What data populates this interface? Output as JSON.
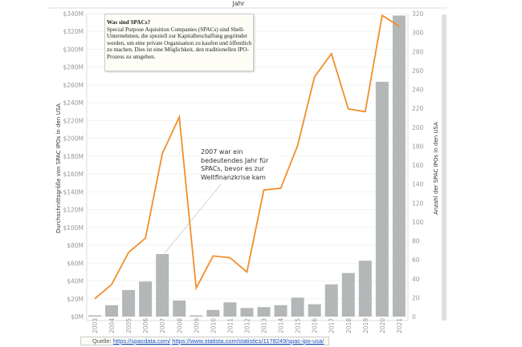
{
  "chart_data": {
    "type": "bar+line",
    "header": "Jahr",
    "categories": [
      "2003",
      "2004",
      "2005",
      "2006",
      "2007",
      "2008",
      "2009",
      "2010",
      "2011",
      "2012",
      "2013",
      "2014",
      "2015",
      "2016",
      "2017",
      "2018",
      "2019",
      "2020",
      "2021"
    ],
    "series": [
      {
        "name": "Anzahl der SPAC IPOs in den USA",
        "type": "bar",
        "axis": "right",
        "color": "#b4b7b7",
        "values": [
          1,
          12,
          28,
          37,
          66,
          17,
          1,
          7,
          15,
          9,
          10,
          12,
          20,
          13,
          34,
          46,
          59,
          248,
          318
        ]
      },
      {
        "name": "Durchschnittsgröße von SPAC IPOs in den USA",
        "type": "line",
        "axis": "left",
        "color": "#f28e2b",
        "values": [
          20,
          36,
          72,
          88,
          183,
          224,
          32,
          68,
          66,
          50,
          142,
          144,
          192,
          269,
          295,
          233,
          230,
          338,
          326
        ]
      }
    ],
    "ylabel_left": "Durchschnittsgröße von SPAC IPOs in den USA",
    "ylabel_right": "Anzahl der SPAC IPOs in den USA",
    "ylim_left": [
      0,
      340
    ],
    "ylim_right": [
      0,
      320
    ],
    "left_ticks": [
      "$0M",
      "$20M",
      "$40M",
      "$60M",
      "$80M",
      "$100M",
      "$120M",
      "$140M",
      "$160M",
      "$180M",
      "$200M",
      "$220M",
      "$240M",
      "$260M",
      "$280M",
      "$300M",
      "$320M",
      "$340M"
    ],
    "right_ticks": [
      "0",
      "20",
      "40",
      "60",
      "80",
      "100",
      "120",
      "140",
      "160",
      "180",
      "200",
      "220",
      "240",
      "260",
      "280",
      "300",
      "320"
    ],
    "grid": true
  },
  "note": {
    "title": "Was sind SPACs?",
    "body": "Special Purpose Aquisition Companies (SPACs) sind Shell-Unternehmen, die speziell zur Kapitalbeschaffung gegründet werden, um eine private Organisation zu kaufen und öffentlich zu machen. Dies ist eine Möglichkeit, den traditionellen IPO-Prozess zu umgehen."
  },
  "annotation": "2007 war ein bedeutendes Jahr für SPACs, bevor es zur Weltfinanzkrise kam",
  "source": {
    "label": "Quelle:",
    "link1": "https://spacdata.com/",
    "link2": "https://www.statista.com/statistics/1178249/spac-ipo-usa/"
  }
}
